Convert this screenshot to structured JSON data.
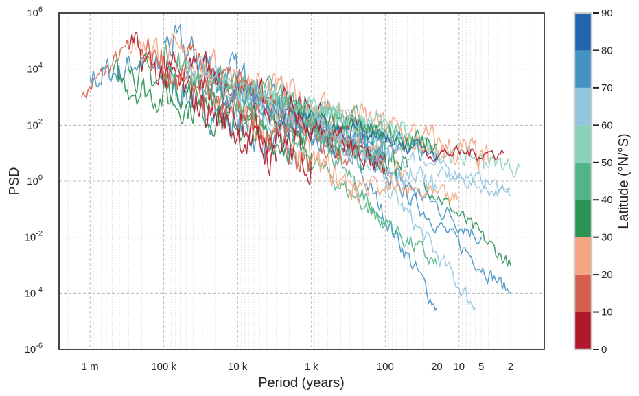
{
  "chart_data": {
    "type": "line",
    "title": "",
    "xlabel": "Period (years)",
    "ylabel": "PSD",
    "xscale": "log (reversed, period)",
    "yscale": "log",
    "xlim_period": [
      2630000,
      0.7
    ],
    "ylim": [
      1e-06,
      1000000.0
    ],
    "grid": true,
    "xticks": [
      {
        "v": 1000000,
        "label": "1 m"
      },
      {
        "v": 100000,
        "label": "100 k"
      },
      {
        "v": 10000,
        "label": "10 k"
      },
      {
        "v": 1000,
        "label": "1 k"
      },
      {
        "v": 100,
        "label": "100"
      },
      {
        "v": 20,
        "label": "20"
      },
      {
        "v": 10,
        "label": "10"
      },
      {
        "v": 5,
        "label": "5"
      },
      {
        "v": 2,
        "label": "2"
      }
    ],
    "yticks": [
      {
        "exp": 6
      },
      {
        "exp": 4
      },
      {
        "exp": 2
      },
      {
        "exp": 0
      },
      {
        "exp": -2
      },
      {
        "exp": -4
      },
      {
        "exp": -6
      }
    ],
    "colorbar": {
      "label": "Latitude (°N/°S)",
      "ticks": [
        0,
        10,
        20,
        30,
        40,
        50,
        60,
        70,
        80,
        90
      ],
      "bins": [
        {
          "from": 0,
          "to": 10,
          "color": "#b2182b"
        },
        {
          "from": 10,
          "to": 20,
          "color": "#d6604d"
        },
        {
          "from": 20,
          "to": 30,
          "color": "#f4a582"
        },
        {
          "from": 30,
          "to": 40,
          "color": "#2b9453"
        },
        {
          "from": 40,
          "to": 50,
          "color": "#52b58a"
        },
        {
          "from": 50,
          "to": 60,
          "color": "#88d1bb"
        },
        {
          "from": 60,
          "to": 70,
          "color": "#92c5de"
        },
        {
          "from": 70,
          "to": 80,
          "color": "#4393c3"
        },
        {
          "from": 80,
          "to": 90,
          "color": "#2166ac"
        }
      ]
    },
    "series": [
      {
        "lat": 15,
        "p": [
          1300000,
          300000
        ],
        "psd": [
          1000,
          60000
        ],
        "noise": 0.3
      },
      {
        "lat": 75,
        "p": [
          1000000,
          300000
        ],
        "psd": [
          5000,
          10000
        ],
        "noise": 0.5
      },
      {
        "lat": 75,
        "p": [
          300000,
          1500
        ],
        "psd": [
          30000,
          5
        ],
        "noise": 0.6
      },
      {
        "lat": 75,
        "p": [
          100000,
          100
        ],
        "psd": [
          100000,
          10
        ],
        "noise": 0.6
      },
      {
        "lat": 75,
        "p": [
          300,
          20
        ],
        "psd": [
          10,
          3e-05
        ],
        "noise": 0.3
      },
      {
        "lat": 75,
        "p": [
          200,
          2
        ],
        "psd": [
          10,
          0.0001
        ],
        "noise": 0.25
      },
      {
        "lat": 75,
        "p": [
          500,
          5
        ],
        "psd": [
          50,
          0.01
        ],
        "noise": 0.3
      },
      {
        "lat": 65,
        "p": [
          200,
          6
        ],
        "psd": [
          10,
          3e-05
        ],
        "noise": 0.3
      },
      {
        "lat": 65,
        "p": [
          30,
          2
        ],
        "psd": [
          5,
          0.5
        ],
        "noise": 0.2
      },
      {
        "lat": 65,
        "p": [
          20,
          2
        ],
        "psd": [
          2,
          0.3
        ],
        "noise": 0.2
      },
      {
        "lat": 35,
        "p": [
          30,
          2
        ],
        "psd": [
          1,
          0.001
        ],
        "noise": 0.25
      },
      {
        "lat": 35,
        "p": [
          500000,
          1000
        ],
        "psd": [
          5000,
          10
        ],
        "noise": 0.5
      },
      {
        "lat": 35,
        "p": [
          300000,
          50
        ],
        "psd": [
          10000,
          3
        ],
        "noise": 0.5
      },
      {
        "lat": 45,
        "p": [
          30000,
          20
        ],
        "psd": [
          10000,
          0.001
        ],
        "noise": 0.3
      },
      {
        "lat": 55,
        "p": [
          3000,
          1.5
        ],
        "psd": [
          200,
          3
        ],
        "noise": 0.3
      },
      {
        "lat": 55,
        "p": [
          10000,
          50
        ],
        "psd": [
          1000,
          50
        ],
        "noise": 0.4
      },
      {
        "lat": 25,
        "p": [
          300000,
          4
        ],
        "psd": [
          100000,
          5
        ],
        "noise": 0.5
      },
      {
        "lat": 25,
        "p": [
          20000,
          200
        ],
        "psd": [
          1000,
          0.3
        ],
        "noise": 0.5
      },
      {
        "lat": 25,
        "p": [
          1000,
          15
        ],
        "psd": [
          100,
          10
        ],
        "noise": 0.3
      },
      {
        "lat": 5,
        "p": [
          300000,
          3000
        ],
        "psd": [
          50000,
          5
        ],
        "noise": 0.6
      },
      {
        "lat": 5,
        "p": [
          100000,
          1000
        ],
        "psd": [
          30000,
          5
        ],
        "noise": 0.6
      },
      {
        "lat": 5,
        "p": [
          30000,
          200
        ],
        "psd": [
          10000,
          30
        ],
        "noise": 0.5
      },
      {
        "lat": 5,
        "p": [
          5000,
          100
        ],
        "psd": [
          500,
          5
        ],
        "noise": 0.4
      },
      {
        "lat": 5,
        "p": [
          30,
          2.5
        ],
        "psd": [
          10,
          10
        ],
        "noise": 0.2
      },
      {
        "lat": 15,
        "p": [
          200000,
          1000
        ],
        "psd": [
          50000,
          3
        ],
        "noise": 0.6
      },
      {
        "lat": 15,
        "p": [
          50000,
          300
        ],
        "psd": [
          20000,
          10
        ],
        "noise": 0.5
      },
      {
        "lat": 15,
        "p": [
          10000,
          500
        ],
        "psd": [
          5000,
          20
        ],
        "noise": 0.5
      },
      {
        "lat": 45,
        "p": [
          100000,
          500
        ],
        "psd": [
          30000,
          20
        ],
        "noise": 0.5
      },
      {
        "lat": 45,
        "p": [
          20000,
          50
        ],
        "psd": [
          5000,
          30
        ],
        "noise": 0.4
      },
      {
        "lat": 55,
        "p": [
          50000,
          100
        ],
        "psd": [
          10000,
          30
        ],
        "noise": 0.4
      },
      {
        "lat": 55,
        "p": [
          5000,
          20
        ],
        "psd": [
          1000,
          20
        ],
        "noise": 0.3
      },
      {
        "lat": 65,
        "p": [
          50000,
          200
        ],
        "psd": [
          10000,
          20
        ],
        "noise": 0.5
      },
      {
        "lat": 65,
        "p": [
          5000,
          40
        ],
        "psd": [
          300,
          5
        ],
        "noise": 0.4
      },
      {
        "lat": 75,
        "p": [
          20000,
          100
        ],
        "psd": [
          3000,
          5
        ],
        "noise": 0.5
      },
      {
        "lat": 75,
        "p": [
          2000,
          30
        ],
        "psd": [
          200,
          10
        ],
        "noise": 0.3
      },
      {
        "lat": 85,
        "p": [
          3000,
          20
        ],
        "psd": [
          300,
          10
        ],
        "noise": 0.3
      },
      {
        "lat": 35,
        "p": [
          2000,
          20
        ],
        "psd": [
          300,
          20
        ],
        "noise": 0.3
      },
      {
        "lat": 25,
        "p": [
          3000,
          50
        ],
        "psd": [
          500,
          2
        ],
        "noise": 0.4
      },
      {
        "lat": 45,
        "p": [
          3000,
          100
        ],
        "psd": [
          500,
          5
        ],
        "noise": 0.4
      },
      {
        "lat": 55,
        "p": [
          2000,
          60
        ],
        "psd": [
          800,
          60
        ],
        "noise": 0.3
      },
      {
        "lat": 5,
        "p": [
          2000,
          100
        ],
        "psd": [
          300,
          3
        ],
        "noise": 0.4
      },
      {
        "lat": 65,
        "p": [
          1000,
          20
        ],
        "psd": [
          100,
          0.5
        ],
        "noise": 0.4
      },
      {
        "lat": 25,
        "p": [
          300,
          10
        ],
        "psd": [
          1,
          0.2
        ],
        "noise": 0.3
      },
      {
        "lat": 45,
        "p": [
          1000,
          100
        ],
        "psd": [
          100,
          0.03
        ],
        "noise": 0.3
      }
    ]
  }
}
